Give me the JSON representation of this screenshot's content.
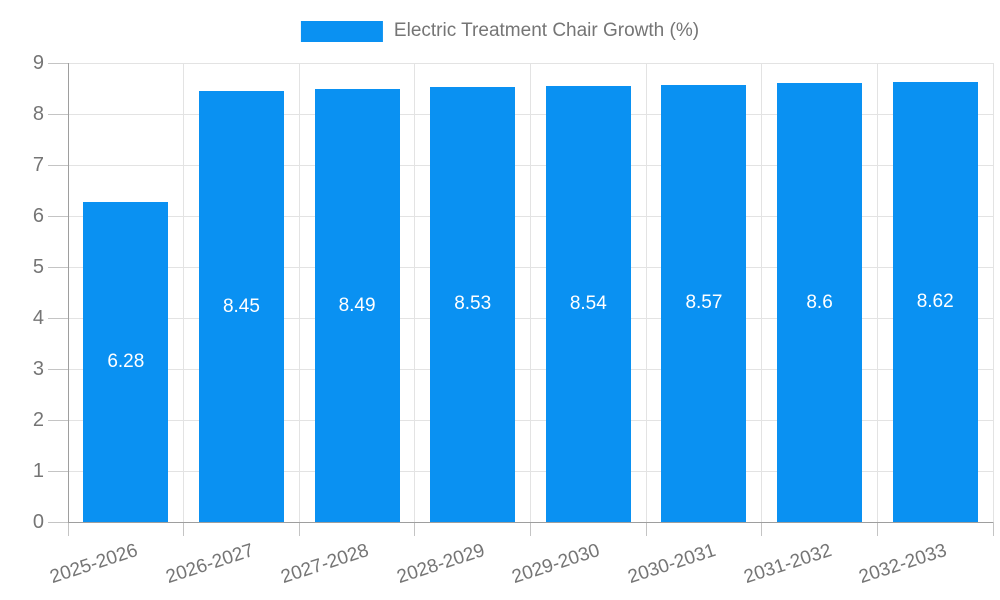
{
  "legend": {
    "label": "Electric Treatment Chair Growth (%)"
  },
  "chart_data": {
    "type": "bar",
    "title": "Electric Treatment Chair Growth (%)",
    "categories": [
      "2025-2026",
      "2026-2027",
      "2027-2028",
      "2028-2029",
      "2029-2030",
      "2030-2031",
      "2031-2032",
      "2032-2033"
    ],
    "values": [
      6.28,
      8.45,
      8.49,
      8.53,
      8.54,
      8.57,
      8.6,
      8.62
    ],
    "value_labels": [
      "6.28",
      "8.45",
      "8.49",
      "8.53",
      "8.54",
      "8.57",
      "8.6",
      "8.62"
    ],
    "xlabel": "",
    "ylabel": "",
    "ylim": [
      0,
      9
    ],
    "y_ticks": [
      "0",
      "1",
      "2",
      "3",
      "4",
      "5",
      "6",
      "7",
      "8",
      "9"
    ],
    "grid": true,
    "legend_position": "top-center",
    "bar_color": "#0A91F2",
    "value_label_color": "#ffffff",
    "axis_text_color": "#757575"
  }
}
